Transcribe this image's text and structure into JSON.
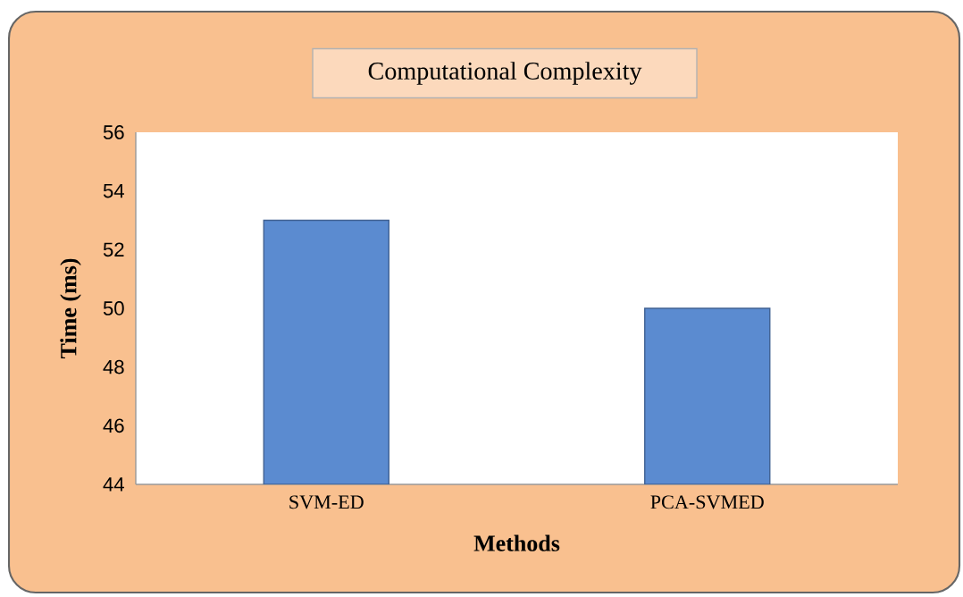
{
  "chart_data": {
    "type": "bar",
    "title": "Computational Complexity",
    "xlabel": "Methods",
    "ylabel": "Time (ms)",
    "categories": [
      "SVM-ED",
      "PCA-SVMED"
    ],
    "values": [
      53,
      50
    ],
    "color": "#5b8bd0",
    "ylim": [
      44,
      56
    ],
    "yticks": [
      44,
      46,
      48,
      50,
      52,
      54,
      56
    ]
  }
}
